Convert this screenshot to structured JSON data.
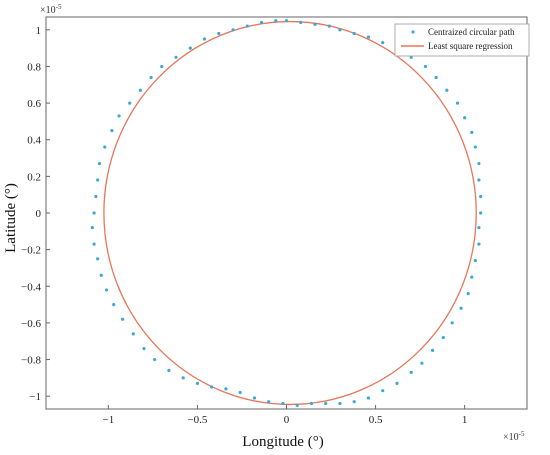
{
  "chart_data": {
    "type": "scatter",
    "xlabel": "Longitude (°)",
    "ylabel": "Latitude (°)",
    "x_exponent": "×10",
    "x_exponent_power": "-5",
    "y_exponent": "×10",
    "y_exponent_power": "-5",
    "xlim": [
      -1.35,
      1.35
    ],
    "ylim": [
      -1.07,
      1.07
    ],
    "xticks": [
      -1,
      -0.5,
      0,
      0.5,
      1
    ],
    "xtick_labels": [
      "−1",
      "−0.5",
      "0",
      "0.5",
      "1"
    ],
    "yticks": [
      -1,
      -0.8,
      -0.6,
      -0.4,
      -0.2,
      0,
      0.2,
      0.4,
      0.6,
      0.8,
      1
    ],
    "ytick_labels": [
      "−1",
      "−0.8",
      "−0.6",
      "−0.4",
      "−0.2",
      "0",
      "0.2",
      "0.4",
      "0.6",
      "0.8",
      "1"
    ],
    "grid": false,
    "legend_position": "top-right",
    "series": [
      {
        "name": "Centraized circular path",
        "kind": "points",
        "color": "#3ba9d6",
        "x": [
          0.0,
          0.08,
          0.16,
          0.24,
          0.3,
          0.38,
          0.46,
          0.54,
          0.62,
          0.7,
          0.78,
          0.84,
          0.9,
          0.96,
          1.0,
          1.04,
          1.06,
          1.08,
          1.08,
          1.09,
          1.09,
          1.08,
          1.08,
          1.06,
          1.04,
          1.02,
          0.98,
          0.93,
          0.88,
          0.82,
          0.76,
          0.7,
          0.62,
          0.54,
          0.46,
          0.38,
          0.3,
          0.22,
          0.14,
          0.06,
          -0.02,
          -0.1,
          -0.18,
          -0.26,
          -0.34,
          -0.42,
          -0.5,
          -0.58,
          -0.66,
          -0.74,
          -0.8,
          -0.86,
          -0.92,
          -0.97,
          -1.01,
          -1.04,
          -1.06,
          -1.08,
          -1.09,
          -1.08,
          -1.07,
          -1.06,
          -1.05,
          -1.02,
          -0.98,
          -0.94,
          -0.88,
          -0.82,
          -0.76,
          -0.7,
          -0.62,
          -0.54,
          -0.46,
          -0.38,
          -0.3,
          -0.22,
          -0.14,
          -0.06
        ],
        "y": [
          1.05,
          1.04,
          1.03,
          1.02,
          1.0,
          0.98,
          0.96,
          0.93,
          0.89,
          0.85,
          0.8,
          0.74,
          0.67,
          0.6,
          0.52,
          0.44,
          0.36,
          0.27,
          0.18,
          0.09,
          0.0,
          -0.08,
          -0.17,
          -0.26,
          -0.35,
          -0.44,
          -0.52,
          -0.6,
          -0.68,
          -0.75,
          -0.82,
          -0.87,
          -0.93,
          -0.97,
          -1.01,
          -1.03,
          -1.04,
          -1.04,
          -1.04,
          -1.05,
          -1.04,
          -1.03,
          -1.01,
          -0.98,
          -0.96,
          -0.95,
          -0.93,
          -0.9,
          -0.86,
          -0.8,
          -0.74,
          -0.66,
          -0.58,
          -0.5,
          -0.42,
          -0.34,
          -0.25,
          -0.17,
          -0.08,
          0.0,
          0.09,
          0.18,
          0.27,
          0.36,
          0.45,
          0.53,
          0.6,
          0.67,
          0.74,
          0.8,
          0.85,
          0.9,
          0.95,
          0.98,
          1.0,
          1.02,
          1.04,
          1.05
        ]
      },
      {
        "name": "Least square regression",
        "kind": "circle-fit",
        "color": "#e8765a",
        "center": [
          0.02,
          0.0
        ],
        "radius": 1.045
      }
    ]
  }
}
